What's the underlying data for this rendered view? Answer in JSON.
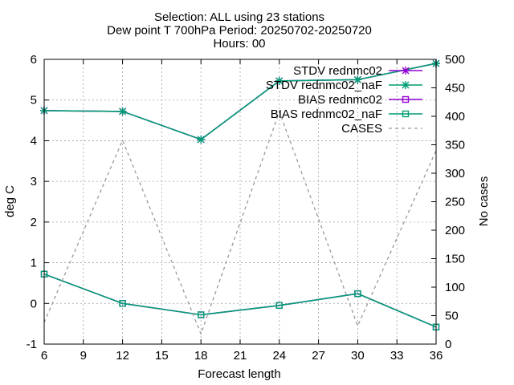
{
  "chart_data": {
    "type": "line",
    "title_lines": [
      "Selection: ALL using    23 stations",
      "Dew point T 700hPa   Period: 20250702-20250720",
      "Hours: 00"
    ],
    "xlabel": "Forecast length",
    "ylabel": "deg C",
    "y2label": "No cases",
    "xlim": [
      6,
      36
    ],
    "ylim": [
      -1,
      6
    ],
    "y2lim": [
      0,
      500
    ],
    "xticks": [
      6,
      9,
      12,
      15,
      18,
      21,
      24,
      27,
      30,
      33,
      36
    ],
    "yticks": [
      -1,
      0,
      1,
      2,
      3,
      4,
      5,
      6
    ],
    "y2ticks": [
      0,
      50,
      100,
      150,
      200,
      250,
      300,
      350,
      400,
      450,
      500
    ],
    "grid": true,
    "legend_position": "top-right",
    "series": [
      {
        "name": "STDV rednmc02",
        "color": "#9400d3",
        "marker": "star",
        "dash": false,
        "axis": "y1",
        "x": [
          6,
          12,
          18,
          24,
          30,
          36
        ],
        "values": [
          4.74,
          4.72,
          4.03,
          5.47,
          5.5,
          5.9
        ]
      },
      {
        "name": "STDV rednmc02_naF",
        "color": "#009e73",
        "marker": "star",
        "dash": false,
        "axis": "y1",
        "x": [
          6,
          12,
          18,
          24,
          30,
          36
        ],
        "values": [
          4.74,
          4.72,
          4.03,
          5.47,
          5.5,
          5.9
        ]
      },
      {
        "name": "BIAS rednmc02",
        "color": "#9400d3",
        "marker": "square",
        "dash": false,
        "axis": "y1",
        "x": [
          6,
          12,
          18,
          24,
          30,
          36
        ],
        "values": [
          0.72,
          0.0,
          -0.28,
          -0.05,
          0.24,
          -0.58
        ]
      },
      {
        "name": "BIAS rednmc02_naF",
        "color": "#009e73",
        "marker": "square",
        "dash": false,
        "axis": "y1",
        "x": [
          6,
          12,
          18,
          24,
          30,
          36
        ],
        "values": [
          0.72,
          0.0,
          -0.28,
          -0.05,
          0.24,
          -0.58
        ]
      },
      {
        "name": "CASES",
        "color": "#999999",
        "marker": "none",
        "dash": true,
        "axis": "y2",
        "x": [
          6,
          12,
          18,
          24,
          30,
          36
        ],
        "values": [
          38,
          358,
          18,
          408,
          32,
          340
        ]
      }
    ]
  }
}
